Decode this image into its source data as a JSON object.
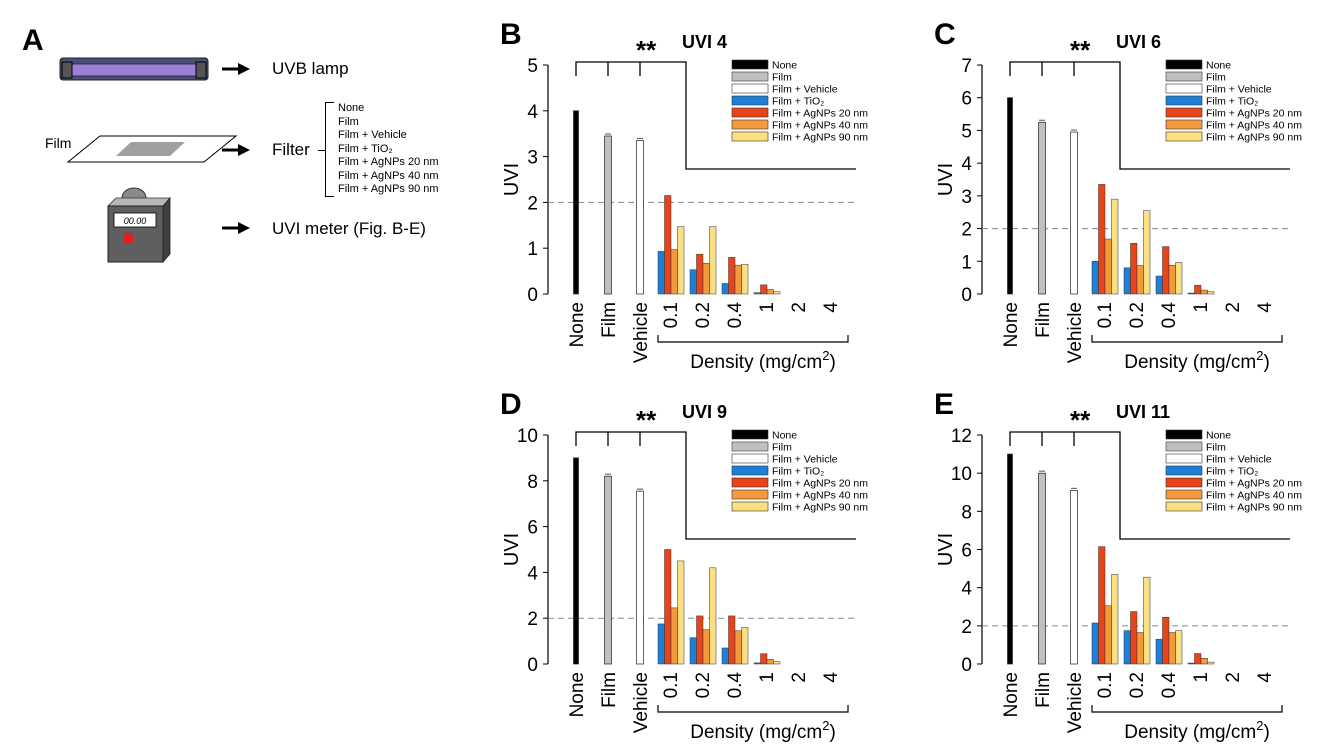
{
  "colors": {
    "None": "#000000",
    "Film": "#c0c0c0",
    "Film + Vehicle": "#ffffff",
    "Film + TiO2": "#1f7fd6",
    "Film + AgNPs 20 nm": "#e8441a",
    "Film + AgNPs 40 nm": "#f59a3c",
    "Film + AgNPs 90 nm": "#fbe081"
  },
  "icons": [
    "uvb-lamp-icon",
    "film-icon",
    "uvi-meter-icon",
    "arrow-right-icon"
  ],
  "schematic": {
    "letter": "A",
    "lamp_label": "UVB lamp",
    "film_label": "Film",
    "filter_label": "Filter",
    "filter_options": [
      "None",
      "Film",
      "Film + Vehicle",
      "Film + TiO₂",
      "Film + AgNPs 20 nm",
      "Film + AgNPs 40 nm",
      "Film + AgNPs 90 nm"
    ],
    "meter_label": "UVI meter (Fig. B-E)",
    "meter_display": "00.00"
  },
  "chart_data": [
    {
      "type": "bar",
      "panel": "B",
      "title": "UVI 4",
      "ylabel": "UVI",
      "xlabel": "Density (mg/cm²)",
      "ylim": [
        0,
        5
      ],
      "yticks": [
        0,
        1,
        2,
        3,
        4,
        5
      ],
      "reference_line": 2,
      "significance": "**",
      "legend": [
        "None",
        "Film",
        "Film + Vehicle",
        "Film + TiO₂",
        "Film + AgNPs 20 nm",
        "Film + AgNPs 40 nm",
        "Film + AgNPs 90 nm"
      ],
      "controls": [
        {
          "label": "None",
          "value": 4.0
        },
        {
          "label": "Film",
          "value": 3.45
        },
        {
          "label": "Vehicle",
          "value": 3.35
        }
      ],
      "densities": [
        "0.1",
        "0.2",
        "0.4",
        "1",
        "2",
        "4"
      ],
      "series": [
        {
          "name": "Film + TiO₂",
          "values": [
            0.93,
            0.53,
            0.23,
            0.03,
            0,
            0
          ]
        },
        {
          "name": "Film + AgNPs 20 nm",
          "values": [
            2.15,
            0.87,
            0.8,
            0.2,
            0,
            0
          ]
        },
        {
          "name": "Film + AgNPs 40 nm",
          "values": [
            0.97,
            0.67,
            0.63,
            0.1,
            0,
            0
          ]
        },
        {
          "name": "Film + AgNPs 90 nm",
          "values": [
            1.47,
            1.47,
            0.65,
            0.05,
            0,
            0
          ]
        }
      ]
    },
    {
      "type": "bar",
      "panel": "C",
      "title": "UVI 6",
      "ylabel": "UVI",
      "xlabel": "Density (mg/cm²)",
      "ylim": [
        0,
        7
      ],
      "yticks": [
        0,
        1,
        2,
        3,
        4,
        5,
        6,
        7
      ],
      "reference_line": 2,
      "significance": "**",
      "legend": [
        "None",
        "Film",
        "Film + Vehicle",
        "Film + TiO₂",
        "Film + AgNPs 20 nm",
        "Film + AgNPs 40 nm",
        "Film + AgNPs 90 nm"
      ],
      "controls": [
        {
          "label": "None",
          "value": 6.0
        },
        {
          "label": "Film",
          "value": 5.25
        },
        {
          "label": "Vehicle",
          "value": 4.95
        }
      ],
      "densities": [
        "0.1",
        "0.2",
        "0.4",
        "1",
        "2",
        "4"
      ],
      "series": [
        {
          "name": "Film + TiO₂",
          "values": [
            1.0,
            0.8,
            0.55,
            0.03,
            0,
            0
          ]
        },
        {
          "name": "Film + AgNPs 20 nm",
          "values": [
            3.35,
            1.55,
            1.45,
            0.27,
            0,
            0
          ]
        },
        {
          "name": "Film + AgNPs 40 nm",
          "values": [
            1.68,
            0.87,
            0.88,
            0.12,
            0,
            0
          ]
        },
        {
          "name": "Film + AgNPs 90 nm",
          "values": [
            2.9,
            2.55,
            0.97,
            0.07,
            0,
            0
          ]
        }
      ]
    },
    {
      "type": "bar",
      "panel": "D",
      "title": "UVI 9",
      "ylabel": "UVI",
      "xlabel": "Density (mg/cm²)",
      "ylim": [
        0,
        10
      ],
      "yticks": [
        0,
        2,
        4,
        6,
        8,
        10
      ],
      "reference_line": 2,
      "significance": "**",
      "legend": [
        "None",
        "Film",
        "Film + Vehicle",
        "Film + TiO₂",
        "Film + AgNPs 20 nm",
        "Film + AgNPs 40 nm",
        "Film + AgNPs 90 nm"
      ],
      "controls": [
        {
          "label": "None",
          "value": 9.0
        },
        {
          "label": "Film",
          "value": 8.2
        },
        {
          "label": "Vehicle",
          "value": 7.55
        }
      ],
      "densities": [
        "0.1",
        "0.2",
        "0.4",
        "1",
        "2",
        "4"
      ],
      "series": [
        {
          "name": "Film + TiO₂",
          "values": [
            1.75,
            1.15,
            0.7,
            0.05,
            0,
            0
          ]
        },
        {
          "name": "Film + AgNPs 20 nm",
          "values": [
            5.0,
            2.1,
            2.1,
            0.45,
            0,
            0
          ]
        },
        {
          "name": "Film + AgNPs 40 nm",
          "values": [
            2.45,
            1.5,
            1.45,
            0.2,
            0,
            0
          ]
        },
        {
          "name": "Film + AgNPs 90 nm",
          "values": [
            4.5,
            4.2,
            1.6,
            0.1,
            0,
            0
          ]
        }
      ]
    },
    {
      "type": "bar",
      "panel": "E",
      "title": "UVI 11",
      "ylabel": "UVI",
      "xlabel": "Density (mg/cm²)",
      "ylim": [
        0,
        12
      ],
      "yticks": [
        0,
        2,
        4,
        6,
        8,
        10,
        12
      ],
      "reference_line": 2,
      "significance": "**",
      "legend": [
        "None",
        "Film",
        "Film + Vehicle",
        "Film + TiO₂",
        "Film + AgNPs 20 nm",
        "Film + AgNPs 40 nm",
        "Film + AgNPs 90 nm"
      ],
      "controls": [
        {
          "label": "None",
          "value": 11.0
        },
        {
          "label": "Film",
          "value": 10.0
        },
        {
          "label": "Vehicle",
          "value": 9.1
        }
      ],
      "densities": [
        "0.1",
        "0.2",
        "0.4",
        "1",
        "2",
        "4"
      ],
      "series": [
        {
          "name": "Film + TiO₂",
          "values": [
            2.15,
            1.75,
            1.3,
            0.05,
            0,
            0
          ]
        },
        {
          "name": "Film + AgNPs 20 nm",
          "values": [
            6.15,
            2.75,
            2.45,
            0.55,
            0,
            0
          ]
        },
        {
          "name": "Film + AgNPs 40 nm",
          "values": [
            3.05,
            1.65,
            1.65,
            0.3,
            0,
            0
          ]
        },
        {
          "name": "Film + AgNPs 90 nm",
          "values": [
            4.7,
            4.55,
            1.75,
            0.1,
            0,
            0
          ]
        }
      ]
    }
  ]
}
